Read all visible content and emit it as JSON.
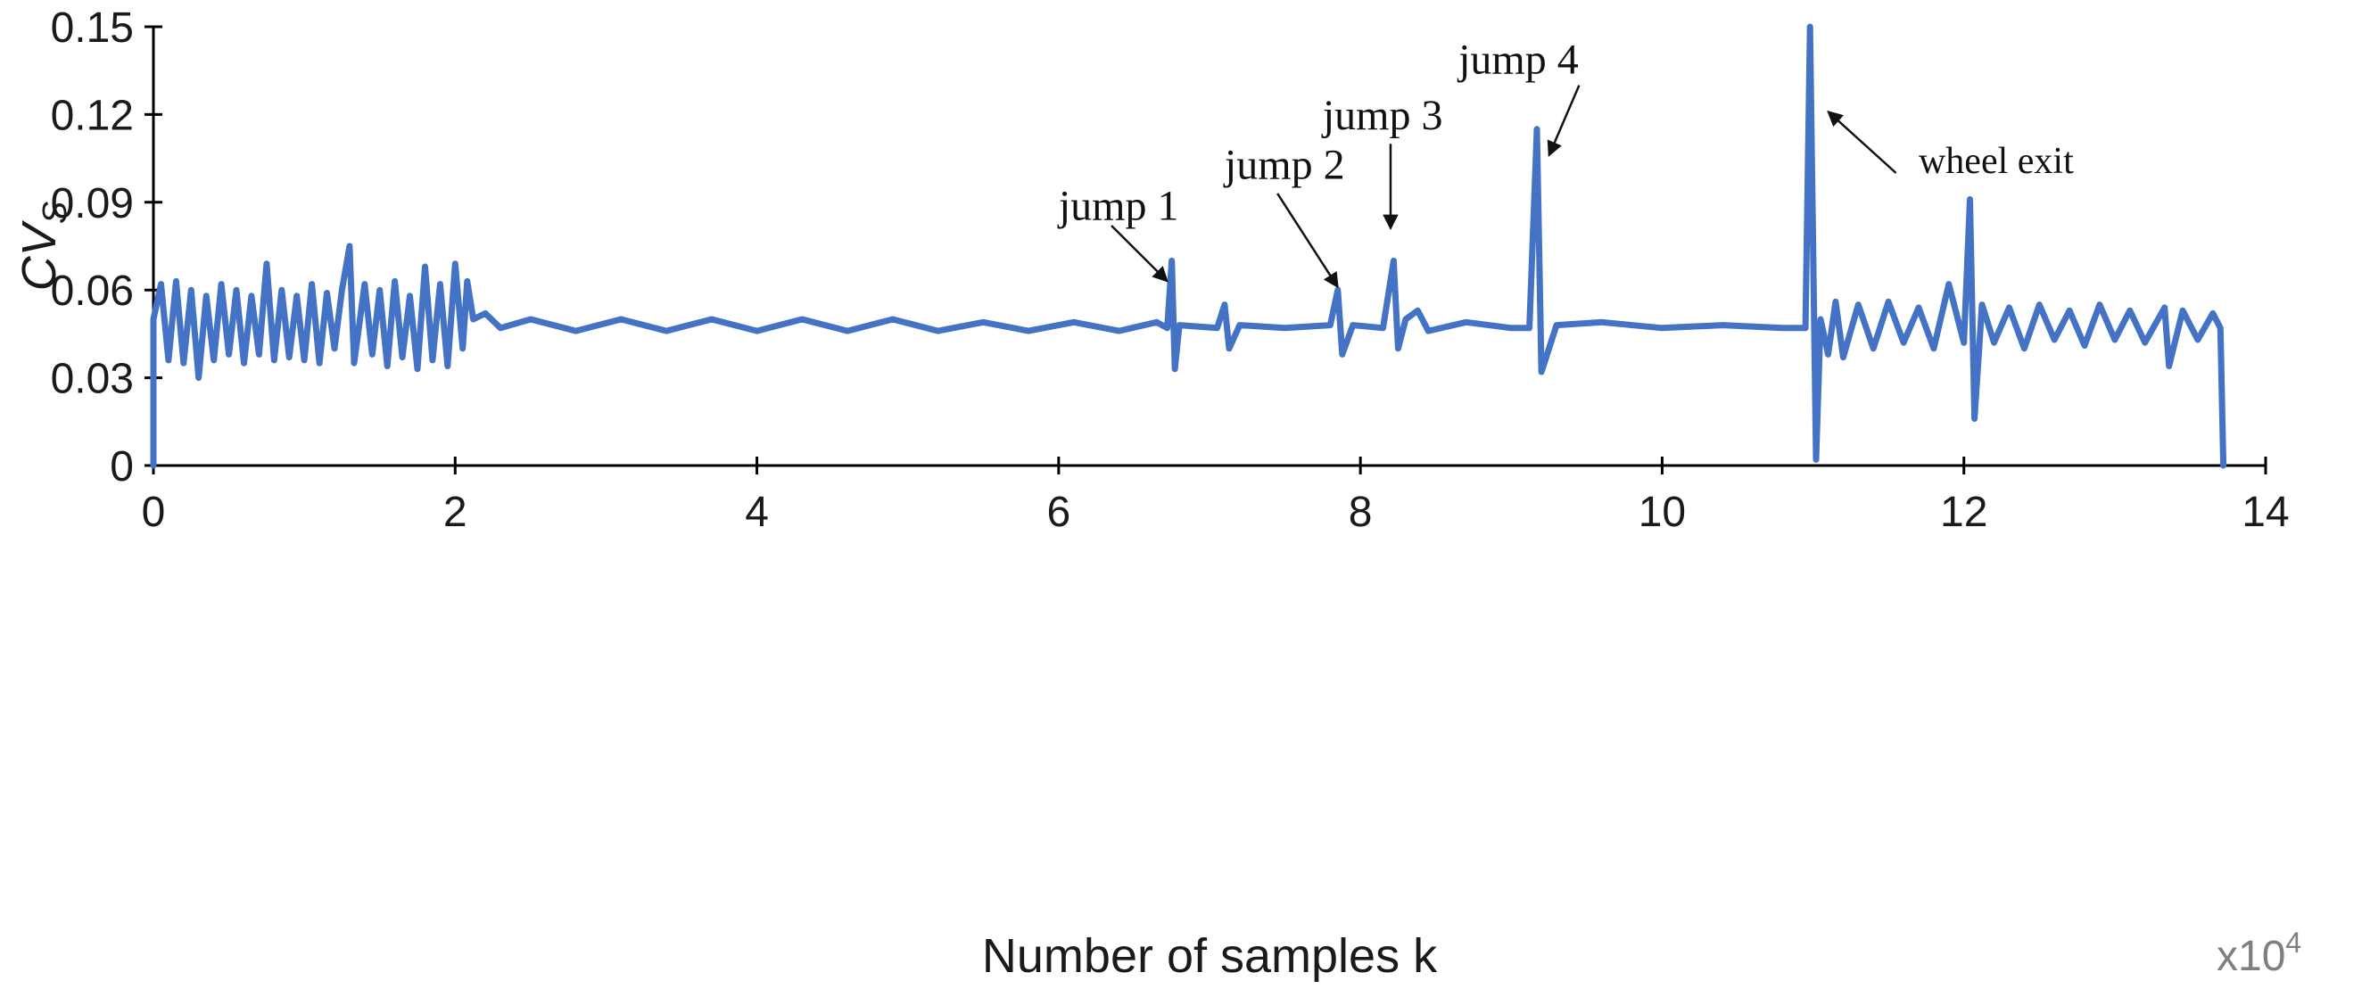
{
  "chart_data": {
    "type": "line",
    "xlabel": "Number of samples k",
    "x_multiplier": "x10",
    "x_multiplier_exp": "4",
    "ylabel_main": "CV",
    "ylabel_sub": "S",
    "xlim": [
      0,
      14
    ],
    "ylim": [
      0,
      0.15
    ],
    "x_ticks": [
      "0",
      "2",
      "4",
      "6",
      "8",
      "10",
      "12",
      "14"
    ],
    "y_ticks": [
      "0",
      "0.03",
      "0.06",
      "0.09",
      "0.12",
      "0.15"
    ],
    "grid": false,
    "line_color": "#4472c4",
    "series": [
      {
        "values": [
          [
            0.0,
            0.0
          ],
          [
            0.0,
            0.05
          ],
          [
            0.05,
            0.062
          ],
          [
            0.1,
            0.036
          ],
          [
            0.15,
            0.063
          ],
          [
            0.2,
            0.035
          ],
          [
            0.25,
            0.06
          ],
          [
            0.3,
            0.03
          ],
          [
            0.35,
            0.058
          ],
          [
            0.4,
            0.036
          ],
          [
            0.45,
            0.062
          ],
          [
            0.5,
            0.038
          ],
          [
            0.55,
            0.06
          ],
          [
            0.6,
            0.035
          ],
          [
            0.65,
            0.058
          ],
          [
            0.7,
            0.038
          ],
          [
            0.75,
            0.069
          ],
          [
            0.8,
            0.036
          ],
          [
            0.85,
            0.06
          ],
          [
            0.9,
            0.037
          ],
          [
            0.95,
            0.058
          ],
          [
            1.0,
            0.036
          ],
          [
            1.05,
            0.062
          ],
          [
            1.1,
            0.035
          ],
          [
            1.15,
            0.059
          ],
          [
            1.2,
            0.04
          ],
          [
            1.25,
            0.06
          ],
          [
            1.3,
            0.075
          ],
          [
            1.33,
            0.035
          ],
          [
            1.4,
            0.062
          ],
          [
            1.45,
            0.038
          ],
          [
            1.5,
            0.06
          ],
          [
            1.55,
            0.034
          ],
          [
            1.6,
            0.063
          ],
          [
            1.65,
            0.037
          ],
          [
            1.7,
            0.058
          ],
          [
            1.75,
            0.033
          ],
          [
            1.8,
            0.068
          ],
          [
            1.85,
            0.036
          ],
          [
            1.9,
            0.062
          ],
          [
            1.95,
            0.034
          ],
          [
            2.0,
            0.069
          ],
          [
            2.05,
            0.04
          ],
          [
            2.08,
            0.063
          ],
          [
            2.12,
            0.05
          ],
          [
            2.2,
            0.052
          ],
          [
            2.3,
            0.047
          ],
          [
            2.5,
            0.05
          ],
          [
            2.8,
            0.046
          ],
          [
            3.1,
            0.05
          ],
          [
            3.4,
            0.046
          ],
          [
            3.7,
            0.05
          ],
          [
            4.0,
            0.046
          ],
          [
            4.3,
            0.05
          ],
          [
            4.6,
            0.046
          ],
          [
            4.9,
            0.05
          ],
          [
            5.2,
            0.046
          ],
          [
            5.5,
            0.049
          ],
          [
            5.8,
            0.046
          ],
          [
            6.1,
            0.049
          ],
          [
            6.4,
            0.046
          ],
          [
            6.65,
            0.049
          ],
          [
            6.72,
            0.047
          ],
          [
            6.75,
            0.07
          ],
          [
            6.77,
            0.033
          ],
          [
            6.8,
            0.048
          ],
          [
            7.05,
            0.047
          ],
          [
            7.1,
            0.055
          ],
          [
            7.13,
            0.04
          ],
          [
            7.2,
            0.048
          ],
          [
            7.5,
            0.047
          ],
          [
            7.8,
            0.048
          ],
          [
            7.85,
            0.06
          ],
          [
            7.88,
            0.038
          ],
          [
            7.95,
            0.048
          ],
          [
            8.15,
            0.047
          ],
          [
            8.22,
            0.07
          ],
          [
            8.25,
            0.04
          ],
          [
            8.3,
            0.05
          ],
          [
            8.38,
            0.053
          ],
          [
            8.45,
            0.046
          ],
          [
            8.7,
            0.049
          ],
          [
            9.0,
            0.047
          ],
          [
            9.12,
            0.047
          ],
          [
            9.17,
            0.115
          ],
          [
            9.2,
            0.032
          ],
          [
            9.25,
            0.04
          ],
          [
            9.3,
            0.048
          ],
          [
            9.6,
            0.049
          ],
          [
            10.0,
            0.047
          ],
          [
            10.4,
            0.048
          ],
          [
            10.8,
            0.047
          ],
          [
            10.95,
            0.047
          ],
          [
            10.98,
            0.15
          ],
          [
            11.02,
            0.002
          ],
          [
            11.05,
            0.05
          ],
          [
            11.1,
            0.038
          ],
          [
            11.15,
            0.056
          ],
          [
            11.2,
            0.037
          ],
          [
            11.3,
            0.055
          ],
          [
            11.4,
            0.04
          ],
          [
            11.5,
            0.056
          ],
          [
            11.6,
            0.042
          ],
          [
            11.7,
            0.054
          ],
          [
            11.8,
            0.04
          ],
          [
            11.9,
            0.062
          ],
          [
            12.0,
            0.042
          ],
          [
            12.04,
            0.091
          ],
          [
            12.07,
            0.016
          ],
          [
            12.12,
            0.055
          ],
          [
            12.2,
            0.042
          ],
          [
            12.3,
            0.054
          ],
          [
            12.4,
            0.04
          ],
          [
            12.5,
            0.055
          ],
          [
            12.6,
            0.043
          ],
          [
            12.7,
            0.053
          ],
          [
            12.8,
            0.041
          ],
          [
            12.9,
            0.055
          ],
          [
            13.0,
            0.043
          ],
          [
            13.1,
            0.053
          ],
          [
            13.2,
            0.042
          ],
          [
            13.33,
            0.054
          ],
          [
            13.36,
            0.034
          ],
          [
            13.45,
            0.053
          ],
          [
            13.55,
            0.043
          ],
          [
            13.65,
            0.052
          ],
          [
            13.7,
            0.047
          ],
          [
            13.72,
            0.0
          ]
        ]
      }
    ],
    "annotations": [
      {
        "text": "jump 1",
        "text_x": 6.0,
        "text_y": 0.084,
        "arrow_from": [
          6.35,
          0.082
        ],
        "arrow_to": [
          6.72,
          0.063
        ]
      },
      {
        "text": "jump 2",
        "text_x": 7.1,
        "text_y": 0.098,
        "arrow_from": [
          7.45,
          0.093
        ],
        "arrow_to": [
          7.85,
          0.061
        ]
      },
      {
        "text": "jump 3",
        "text_x": 7.75,
        "text_y": 0.115,
        "arrow_from": [
          8.2,
          0.11
        ],
        "arrow_to": [
          8.2,
          0.081
        ]
      },
      {
        "text": "jump 4",
        "text_x": 8.65,
        "text_y": 0.134,
        "arrow_from": [
          9.45,
          0.13
        ],
        "arrow_to": [
          9.25,
          0.106
        ]
      },
      {
        "text": "wheel exit",
        "text_x": 11.7,
        "text_y": 0.1,
        "arrow_from": [
          11.55,
          0.1
        ],
        "arrow_to": [
          11.1,
          0.121
        ]
      }
    ]
  }
}
